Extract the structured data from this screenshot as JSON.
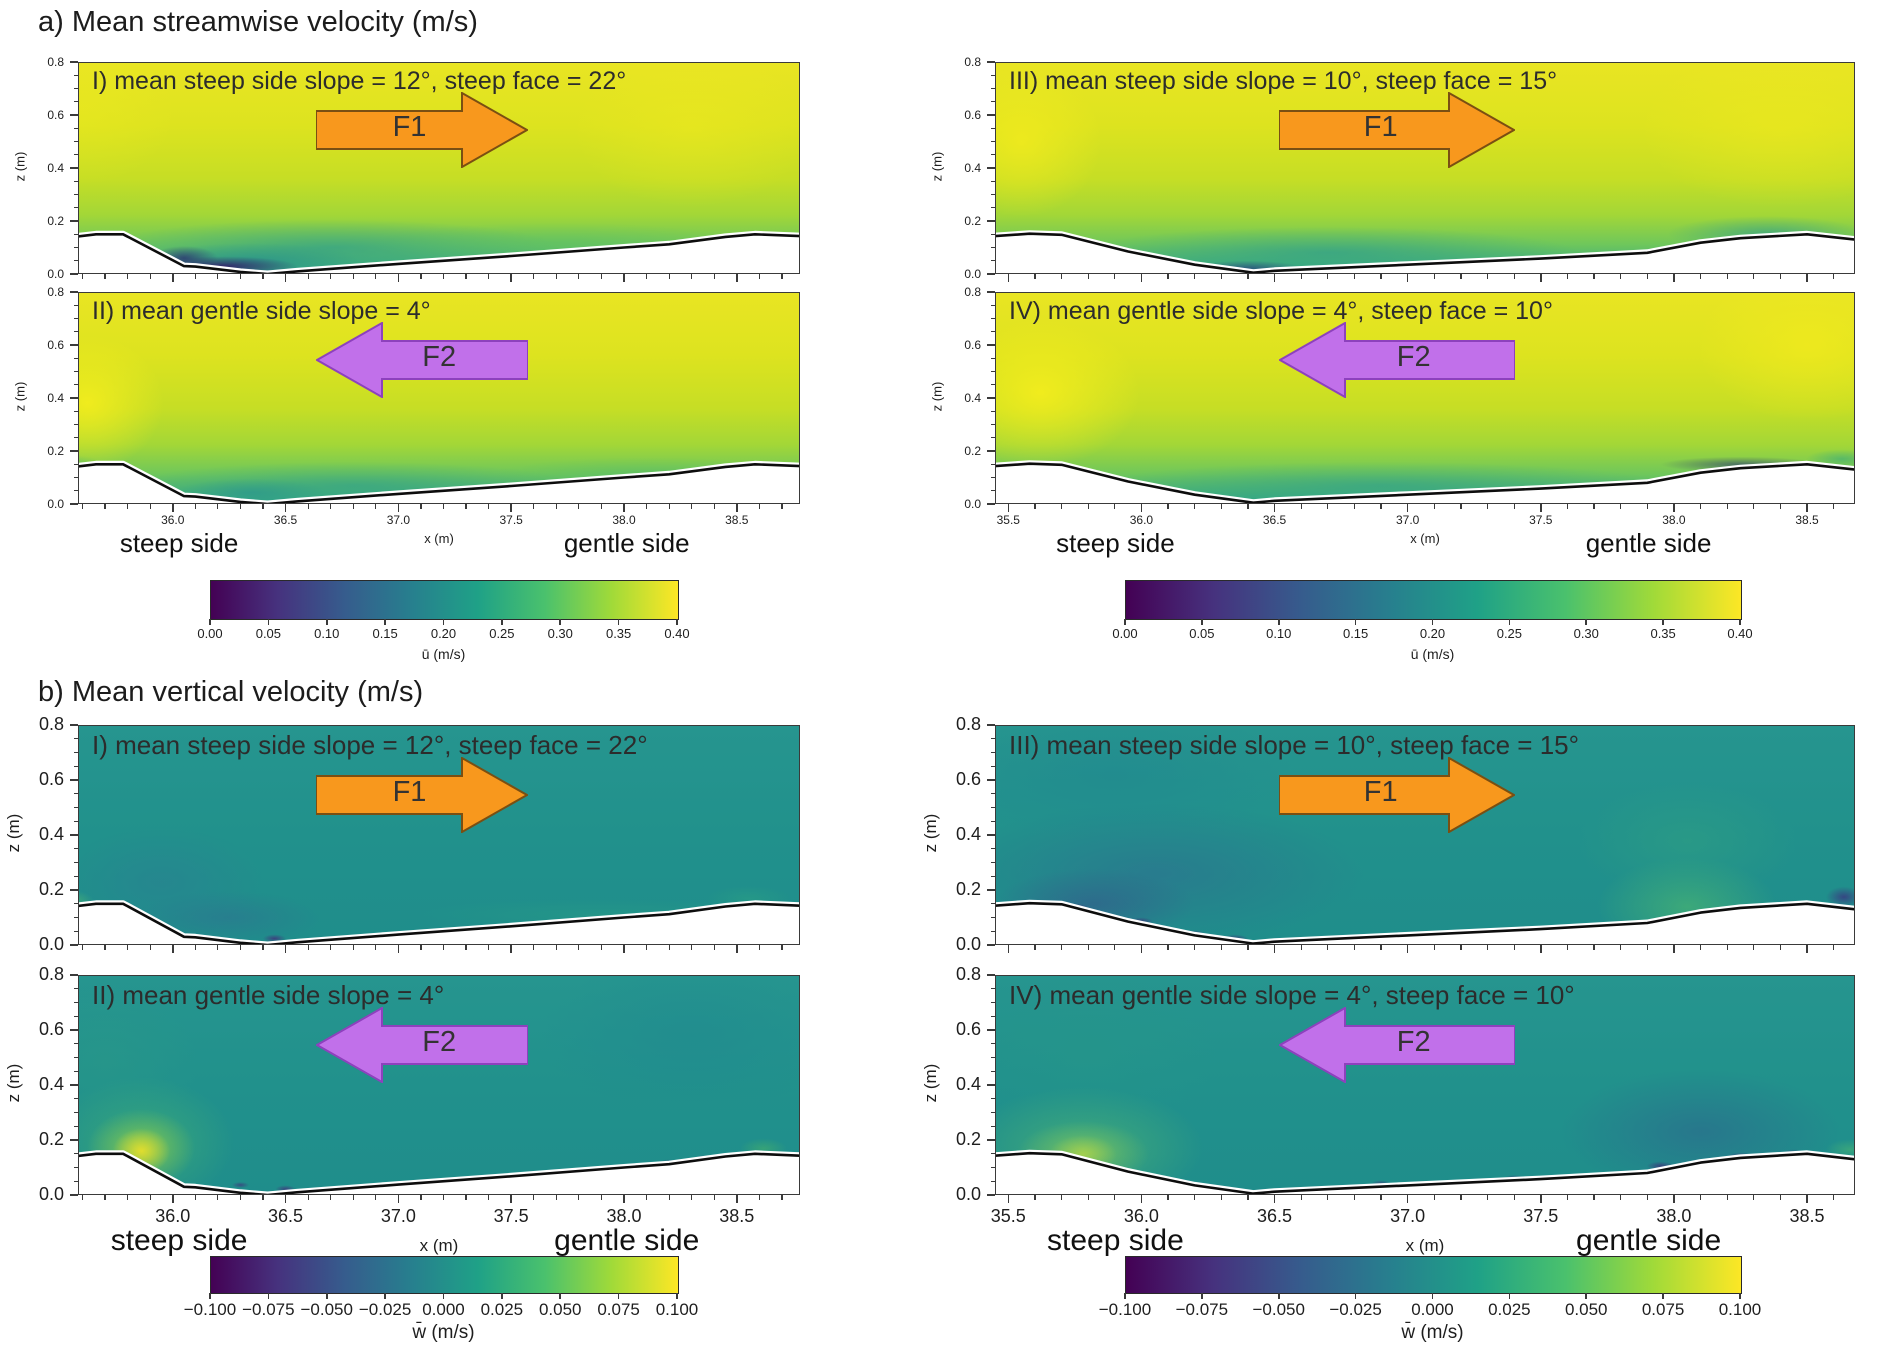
{
  "figure_background": "#ffffff",
  "chart_data": {
    "type": "heatmap",
    "colormap": "viridis",
    "viridis_stops": [
      "#440154",
      "#46327e",
      "#365c8d",
      "#277f8e",
      "#1fa187",
      "#4ac16d",
      "#a0da39",
      "#fde725"
    ],
    "x_axis_label": "x (m)",
    "z_axis": {
      "label": "z (m)",
      "range": [
        0.0,
        0.8
      ],
      "ticks": [
        0.8,
        0.6,
        0.4,
        0.2,
        0.0
      ],
      "tick_labels": [
        "0.8",
        "0.6",
        "0.4",
        "0.2",
        "0.0"
      ]
    },
    "side_labels": {
      "left": "steep side",
      "right": "gentle side"
    },
    "arrows": {
      "F1": {
        "label": "F1",
        "dir": "right",
        "fill": "#f8981d",
        "stroke": "#7a4f12"
      },
      "F2": {
        "label": "F2",
        "dir": "left",
        "fill": "#c170ea",
        "stroke": "#8d41bd"
      }
    },
    "field_base": {
      "a": [
        [
          0,
          "#e9e523"
        ],
        [
          30,
          "#dde31f"
        ],
        [
          55,
          "#c6de25"
        ],
        [
          72,
          "#a3d737"
        ],
        [
          86,
          "#6fc75b"
        ],
        [
          96,
          "#3fae7d"
        ],
        [
          100,
          "#32a487"
        ]
      ],
      "b": [
        [
          0,
          "#26958f"
        ],
        [
          50,
          "#21918c"
        ],
        [
          100,
          "#1f8d8b"
        ]
      ]
    },
    "columns": {
      "left": {
        "x_range": [
          35.58,
          38.78
        ],
        "x_ticks": [
          36.0,
          36.5,
          37.0,
          37.5,
          38.0,
          38.5
        ],
        "x_tick_labels": [
          "36.0",
          "36.5",
          "37.0",
          "37.5",
          "38.0",
          "38.5"
        ],
        "bed": [
          [
            35.58,
            0.142
          ],
          [
            35.66,
            0.15
          ],
          [
            35.78,
            0.15
          ],
          [
            36.05,
            0.03
          ],
          [
            36.1,
            0.028
          ],
          [
            36.3,
            0.008
          ],
          [
            36.42,
            0.0
          ],
          [
            36.55,
            0.01
          ],
          [
            37.0,
            0.038
          ],
          [
            37.5,
            0.068
          ],
          [
            38.0,
            0.1
          ],
          [
            38.2,
            0.112
          ],
          [
            38.45,
            0.14
          ],
          [
            38.58,
            0.15
          ],
          [
            38.78,
            0.143
          ]
        ]
      },
      "right": {
        "x_range": [
          35.45,
          38.68
        ],
        "x_ticks": [
          35.5,
          36.0,
          36.5,
          37.0,
          37.5,
          38.0,
          38.5
        ],
        "x_tick_labels": [
          "35.5",
          "36.0",
          "36.5",
          "37.0",
          "37.5",
          "38.0",
          "38.5"
        ],
        "bed": [
          [
            35.45,
            0.143
          ],
          [
            35.58,
            0.152
          ],
          [
            35.7,
            0.148
          ],
          [
            35.95,
            0.085
          ],
          [
            36.2,
            0.035
          ],
          [
            36.42,
            0.005
          ],
          [
            36.5,
            0.012
          ],
          [
            37.0,
            0.035
          ],
          [
            37.5,
            0.058
          ],
          [
            37.9,
            0.08
          ],
          [
            38.1,
            0.118
          ],
          [
            38.25,
            0.135
          ],
          [
            38.5,
            0.15
          ],
          [
            38.68,
            0.13
          ]
        ]
      }
    },
    "sections": [
      {
        "id": "a",
        "title": "a) Mean streamwise velocity (m/s)",
        "colorbar": {
          "label": "ū (m/s)",
          "range": [
            0.0,
            0.4
          ],
          "ticks": [
            "0.00",
            "0.05",
            "0.10",
            "0.15",
            "0.20",
            "0.25",
            "0.30",
            "0.35",
            "0.40"
          ]
        },
        "panels": [
          {
            "numeral": "I",
            "label": "I) mean steep side slope = 12°, steep face = 22°",
            "column": "left",
            "row": 0,
            "arrow": "F1",
            "features": [
              [
                36.7,
                0.1,
                1.35,
                0.14,
                "#2f9e8bb0"
              ],
              [
                36.35,
                0.05,
                0.65,
                0.09,
                "#27908cbb"
              ],
              [
                36.22,
                0.028,
                0.45,
                0.05,
                "#331466dd"
              ],
              [
                36.05,
                0.06,
                0.2,
                0.06,
                "#2c3070c9"
              ],
              [
                37.7,
                0.12,
                1.1,
                0.1,
                "#4fba6e66"
              ],
              [
                35.6,
                0.62,
                0.55,
                0.38,
                "#f0ec1e59"
              ],
              [
                38.3,
                0.55,
                0.7,
                0.4,
                "#f2ea1e66"
              ]
            ]
          },
          {
            "numeral": "II",
            "label": "II) mean gentle side slope = 4°",
            "column": "left",
            "row": 1,
            "arrow": "F2",
            "features": [
              [
                35.62,
                0.38,
                0.45,
                0.34,
                "#f7ee1cd9"
              ],
              [
                36.8,
                0.07,
                1.35,
                0.12,
                "#2f9e8b99"
              ],
              [
                36.35,
                0.045,
                0.45,
                0.07,
                "#2a958daa"
              ],
              [
                38.1,
                0.11,
                0.9,
                0.09,
                "#49b66f66"
              ],
              [
                35.55,
                0.14,
                0.2,
                0.06,
                "#49b66f88"
              ]
            ]
          },
          {
            "numeral": "III",
            "label": "III) mean steep side slope = 10°, steep face = 15°",
            "column": "right",
            "row": 0,
            "arrow": "F1",
            "features": [
              [
                35.55,
                0.5,
                0.4,
                0.38,
                "#f5ec1dbb"
              ],
              [
                36.7,
                0.08,
                1.25,
                0.13,
                "#2f9e8bb0"
              ],
              [
                36.4,
                0.022,
                0.28,
                0.04,
                "#2b487bc9"
              ],
              [
                38.35,
                0.15,
                0.5,
                0.09,
                "#2f9e8baa"
              ],
              [
                38.4,
                0.55,
                0.7,
                0.4,
                "#f2ea1e77"
              ]
            ]
          },
          {
            "numeral": "IV",
            "label": "IV) mean gentle side slope = 4°, steep face = 10°",
            "column": "right",
            "row": 1,
            "arrow": "F2",
            "features": [
              [
                35.62,
                0.42,
                0.5,
                0.37,
                "#f7ee1cd9"
              ],
              [
                36.9,
                0.07,
                1.45,
                0.12,
                "#2f9e8b99"
              ],
              [
                38.25,
                0.15,
                0.4,
                0.04,
                "#28317099"
              ],
              [
                38.5,
                0.6,
                0.55,
                0.38,
                "#f4eb1daa"
              ],
              [
                38.63,
                0.17,
                0.18,
                0.05,
                "#3fae76aa"
              ]
            ]
          }
        ]
      },
      {
        "id": "b",
        "title": "b) Mean vertical velocity (m/s)",
        "colorbar": {
          "label": "w̄ (m/s)",
          "range": [
            -0.1,
            0.1
          ],
          "ticks": [
            "−0.100",
            "−0.075",
            "−0.050",
            "−0.025",
            "0.000",
            "0.025",
            "0.050",
            "0.075",
            "0.100"
          ]
        },
        "panels": [
          {
            "numeral": "I",
            "label": "I) mean steep side slope = 12°, steep face = 22°",
            "column": "left",
            "row": 0,
            "arrow": "F1",
            "features": [
              [
                35.95,
                0.23,
                0.6,
                0.27,
                "#2b7e9280"
              ],
              [
                36.25,
                0.1,
                0.55,
                0.13,
                "#2d749095"
              ],
              [
                35.55,
                0.16,
                0.13,
                0.05,
                "#56bd6b99"
              ],
              [
                36.45,
                0.022,
                0.07,
                0.02,
                "#43307bcc"
              ],
              [
                37.3,
                0.047,
                0.06,
                0.016,
                "#43307bbb"
              ],
              [
                37.8,
                0.062,
                0.06,
                0.016,
                "#43307bbb"
              ],
              [
                38.1,
                0.09,
                0.06,
                0.016,
                "#43307baa"
              ],
              [
                36.9,
                0.032,
                0.05,
                0.014,
                "#43307baa"
              ],
              [
                37.9,
                0.11,
                1.1,
                0.08,
                "#2aa08466"
              ],
              [
                38.55,
                0.17,
                0.25,
                0.06,
                "#2aa08488"
              ]
            ]
          },
          {
            "numeral": "II",
            "label": "II) mean gentle side slope = 4°",
            "column": "left",
            "row": 1,
            "arrow": "F2",
            "features": [
              [
                35.86,
                0.19,
                0.55,
                0.32,
                "#4ab86f99"
              ],
              [
                35.86,
                0.17,
                0.32,
                0.19,
                "#9ed441bb"
              ],
              [
                35.86,
                0.16,
                0.17,
                0.11,
                "#eadf2ae6"
              ],
              [
                35.7,
                0.48,
                0.55,
                0.38,
                "#2d9c8559"
              ],
              [
                36.5,
                0.022,
                0.06,
                0.017,
                "#432f7abb"
              ],
              [
                36.3,
                0.037,
                0.05,
                0.015,
                "#432f7aaa"
              ],
              [
                37.05,
                0.042,
                0.05,
                0.015,
                "#432f7a99"
              ],
              [
                37.75,
                0.077,
                0.06,
                0.017,
                "#432f7aaa"
              ],
              [
                38.2,
                0.115,
                0.06,
                0.018,
                "#432f7abb"
              ],
              [
                38.35,
                0.132,
                0.05,
                0.016,
                "#432f7aaa"
              ],
              [
                38.62,
                0.17,
                0.14,
                0.05,
                "#45b06a99"
              ],
              [
                38.3,
                0.58,
                0.9,
                0.38,
                "#1f879077"
              ]
            ]
          },
          {
            "numeral": "III",
            "label": "III) mean steep side slope = 10°, steep face = 15°",
            "column": "right",
            "row": 0,
            "arrow": "F1",
            "features": [
              [
                36.05,
                0.26,
                1.05,
                0.34,
                "#2f6b8f8c"
              ],
              [
                35.82,
                0.15,
                0.5,
                0.17,
                "#345a8a99"
              ],
              [
                35.75,
                0.135,
                0.07,
                0.022,
                "#3f2d78cc"
              ],
              [
                36.0,
                0.085,
                0.06,
                0.02,
                "#3f2d78bb"
              ],
              [
                36.35,
                0.022,
                0.07,
                0.022,
                "#3f2d78cc"
              ],
              [
                36.2,
                0.042,
                0.05,
                0.016,
                "#3f2d78aa"
              ],
              [
                38.05,
                0.14,
                0.45,
                0.24,
                "#4fba6e99"
              ],
              [
                38.05,
                0.38,
                0.55,
                0.28,
                "#35a57e66"
              ],
              [
                37.35,
                0.052,
                0.05,
                0.016,
                "#3f2d7899"
              ],
              [
                37.7,
                0.072,
                0.05,
                0.016,
                "#3f2d7899"
              ],
              [
                38.64,
                0.175,
                0.09,
                0.05,
                "#3a3580cc"
              ],
              [
                35.9,
                0.62,
                0.9,
                0.32,
                "#20849077"
              ]
            ]
          },
          {
            "numeral": "IV",
            "label": "IV) mean gentle side slope = 4°, steep face = 10°",
            "column": "right",
            "row": 1,
            "arrow": "F2",
            "features": [
              [
                35.78,
                0.17,
                0.6,
                0.3,
                "#58bd6d99"
              ],
              [
                35.78,
                0.15,
                0.33,
                0.16,
                "#a4d64b88"
              ],
              [
                35.78,
                0.15,
                0.17,
                0.09,
                "#d8e13a77"
              ],
              [
                38.1,
                0.23,
                0.7,
                0.3,
                "#2f5f8c80"
              ],
              [
                37.95,
                0.107,
                0.07,
                0.022,
                "#3f2d78bb"
              ],
              [
                38.25,
                0.137,
                0.07,
                0.022,
                "#3f2d78bb"
              ],
              [
                38.45,
                0.152,
                0.06,
                0.02,
                "#3f2d78aa"
              ],
              [
                36.9,
                0.042,
                0.05,
                0.016,
                "#3f2d7899"
              ],
              [
                37.4,
                0.062,
                0.05,
                0.016,
                "#3f2d7899"
              ],
              [
                38.66,
                0.165,
                0.12,
                0.05,
                "#49b47399"
              ],
              [
                35.8,
                0.52,
                0.65,
                0.38,
                "#27988759"
              ]
            ]
          }
        ]
      }
    ]
  }
}
